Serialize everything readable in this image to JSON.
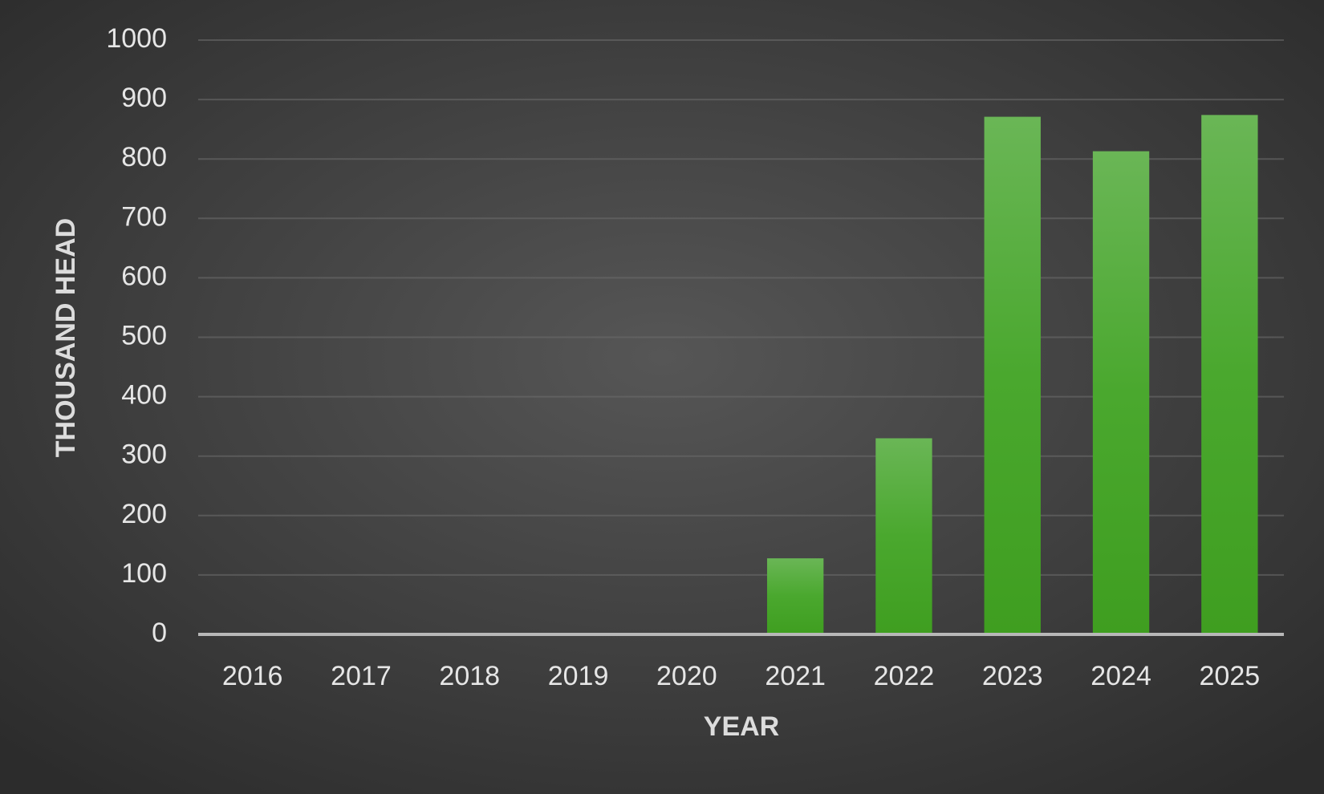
{
  "chart_data": {
    "type": "bar",
    "x_label": "YEAR",
    "y_label": "THOUSAND HEAD",
    "categories": [
      "2016",
      "2017",
      "2018",
      "2019",
      "2020",
      "2021",
      "2022",
      "2023",
      "2024",
      "2025"
    ],
    "values": [
      0,
      0,
      0,
      0,
      0,
      128,
      330,
      871,
      813,
      874
    ],
    "color": "#4aa82e",
    "ylim": [
      0,
      1000
    ],
    "yticks": [
      0,
      100,
      200,
      300,
      400,
      500,
      600,
      700,
      800,
      900,
      1000
    ],
    "grid": true
  }
}
